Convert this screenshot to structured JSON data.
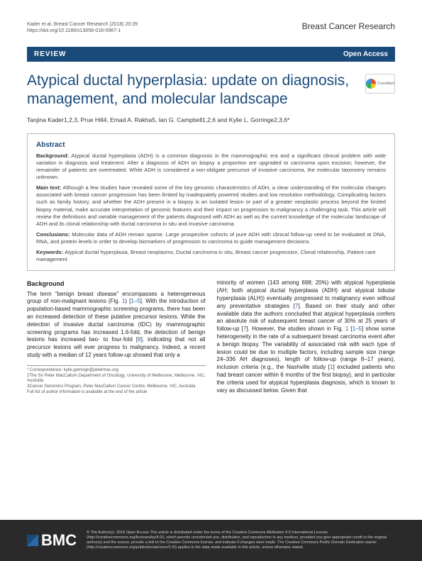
{
  "meta": {
    "citation": "Kader et al. Breast Cancer Research  (2018) 20:39",
    "doi": "https://doi.org/10.1186/s13058-018-0967-1",
    "journal": "Breast Cancer Research"
  },
  "bar": {
    "review": "REVIEW",
    "openAccess": "Open Access"
  },
  "title": "Atypical ductal hyperplasia: update on diagnosis, management, and molecular landscape",
  "crossmark": "CrossMark",
  "authors": "Tanjina Kader1,2,3, Prue Hill4, Emad A. Rakha5, Ian G. Campbell1,2,6 and Kylie L. Gorringe2,3,6*",
  "abstract": {
    "heading": "Abstract",
    "background": {
      "label": "Background:",
      "text": "Atypical ductal hyperplasia (ADH) is a common diagnosis in the mammographic era and a significant clinical problem with wide variation in diagnosis and treatment. After a diagnosis of ADH on biopsy a proportion are upgraded to carcinoma upon excision; however, the remainder of patients are overtreated. While ADH is considered a non-obligate precursor of invasive carcinoma, the molecular taxonomy remains unknown."
    },
    "main": {
      "label": "Main text:",
      "text": "Although a few studies have revealed some of the key genomic characteristics of ADH, a clear understanding of the molecular changes associated with breast cancer progression has been limited by inadequately powered studies and low resolution methodology. Complicating factors such as family history, and whether the ADH present in a biopsy is an isolated lesion or part of a greater neoplastic process beyond the limited biopsy material, make accurate interpretation of genomic features and their impact on progression to malignancy a challenging task. This article will review the definitions and variable management of the patients diagnosed with ADH as well as the current knowledge of the molecular landscape of ADH and its clonal relationship with ductal carcinoma in situ and invasive carcinoma."
    },
    "conclusions": {
      "label": "Conclusions:",
      "text": "Molecular data of ADH remain sparse. Large prospective cohorts of pure ADH with clinical follow-up need to be evaluated at DNA, RNA, and protein levels in order to develop biomarkers of progression to carcinoma to guide management decisions."
    },
    "keywords": {
      "label": "Keywords:",
      "text": "Atypical ductal hyperplasia, Breast neoplasms, Ductal carcinoma in situ, Breast cancer progression, Clonal relationship, Patient care management"
    }
  },
  "body": {
    "heading": "Background",
    "col1a": "The term \"benign breast disease\" encompasses a heterogeneous group of non-malignant lesions (Fig. ",
    "fig1": "1",
    "col1b": ") [",
    "refs1": "1–5",
    "col1c": "]. With the introduction of population-based mammographic screening programs, there has been an increased detection of these putative precursor lesions. While the detection of invasive ductal carcinoma (IDC) by mammographic screening programs has increased 1.6-fold, the detection of benign lesions has increased two- to four-fold [",
    "ref6": "6",
    "col1d": "], indicating that not all precursor lesions will ever progress to malignancy. Indeed, a recent study with a median of 12 years follow-up showed that only a",
    "col2a": "minority of women (143 among 698; 20%) with atypical hyperplasia (AH; both atypical ductal hyperplasia (ADH) and atypical lobular hyperplasia (ALH)) eventually progressed to malignancy even without any preventative strategies [",
    "ref7a": "7",
    "col2b": "]. Based on their study and other available data the authors concluded that atypical hyperplasia confers an absolute risk of subsequent breast cancer of 30% at 25 years of follow-up [",
    "ref7b": "7",
    "col2c": "]. However, the studies shown in Fig. ",
    "fig1b": "1",
    "col2d": " [",
    "refs15": "1–5",
    "col2e": "] show some heterogeneity in the rate of a subsequent breast carcinoma event after a benign biopsy. The variability of associated risk with each type of lesion could be due to multiple factors, including sample size (range 24–336 AH diagnoses), length of follow-up (range 8–17 years), inclusion criteria (e.g., the Nashville study [",
    "ref1": "1",
    "col2f": "] excluded patients who had breast cancer within 6 months of the first biopsy), and in particular the criteria used for atypical hyperplasia diagnosis, which is known to vary as discussed below. Given that"
  },
  "correspondence": {
    "line1": "* Correspondence: kylie.gorringe@petermac.org",
    "line2": "2The Sir Peter MacCallum Department of Oncology, University of Melbourne, Melbourne, VIC, Australia",
    "line3": "3Cancer Genomics Program, Peter MacCallum Cancer Centre, Melbourne, VIC, Australia",
    "line4": "Full list of author information is available at the end of the article"
  },
  "footer": {
    "logo": "BMC",
    "text": "© The Author(s). 2018 Open Access This article is distributed under the terms of the Creative Commons Attribution 4.0 International License (http://creativecommons.org/licenses/by/4.0/), which permits unrestricted use, distribution, and reproduction in any medium, provided you give appropriate credit to the original author(s) and the source, provide a link to the Creative Commons license, and indicate if changes were made. The Creative Commons Public Domain Dedication waiver (http://creativecommons.org/publicdomain/zero/1.0/) applies to the data made available in this article, unless otherwise stated."
  }
}
